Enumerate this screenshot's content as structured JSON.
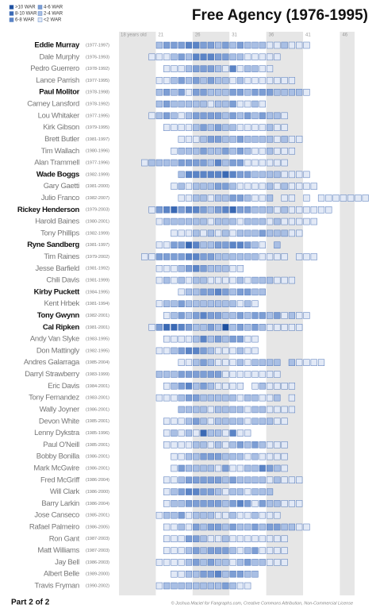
{
  "chart_data": {
    "type": "career-grid",
    "title": "Free Agency (1976-1995)",
    "footer_left": "Part 2 of 2",
    "credit": "© Joshua Maciel for Fangraphs.com, Creative Commons Attribution, Non-Commercial License",
    "legend": [
      {
        "label": ">10 WAR",
        "color": "#1d4f9e",
        "min": 10
      },
      {
        "label": "8-10 WAR",
        "color": "#3a69b4",
        "min": 8
      },
      {
        "label": "6-8 WAR",
        "color": "#5b84c6",
        "min": 6
      },
      {
        "label": "4-6 WAR",
        "color": "#7d9ed4",
        "min": 4
      },
      {
        "label": "2-4 WAR",
        "color": "#a9bfe4",
        "min": 2
      },
      {
        "label": "<2 WAR",
        "color": "#e2e9f6"
      }
    ],
    "xlim": [
      16,
      48
    ],
    "xticks": [
      {
        "value": 18,
        "label": "18 years old"
      },
      21,
      26,
      31,
      36,
      41,
      46
    ],
    "rows": [
      {
        "name": "Eddie Murray",
        "years": "(1977-1997)",
        "bold": true,
        "start_age": 21,
        "war": [
          3,
          5,
          5,
          5,
          7,
          7,
          5,
          5,
          3,
          5,
          3,
          5,
          3,
          3,
          3,
          1,
          1,
          3,
          1,
          1,
          1
        ]
      },
      {
        "name": "Dale Murphy",
        "years": "(1976-1993)",
        "bold": false,
        "start_age": 20,
        "war": [
          1,
          1,
          1,
          3,
          5,
          3,
          7,
          7,
          7,
          5,
          5,
          3,
          3,
          1,
          1,
          1,
          1,
          1
        ]
      },
      {
        "name": "Pedro Guerrero",
        "years": "(1978-1992)",
        "bold": false,
        "start_age": 22,
        "war": [
          1,
          1,
          1,
          3,
          5,
          5,
          5,
          3,
          1,
          7,
          1,
          3,
          3,
          1,
          1
        ]
      },
      {
        "name": "Lance Parrish",
        "years": "(1977-1995)",
        "bold": false,
        "start_age": 21,
        "war": [
          1,
          1,
          3,
          5,
          3,
          5,
          3,
          5,
          3,
          3,
          1,
          3,
          1,
          1,
          1,
          1,
          1,
          1,
          1
        ]
      },
      {
        "name": "Paul Molitor",
        "years": "(1978-1998)",
        "bold": true,
        "start_age": 21,
        "war": [
          3,
          5,
          3,
          5,
          1,
          5,
          5,
          3,
          3,
          3,
          5,
          5,
          3,
          5,
          5,
          5,
          3,
          3,
          3,
          3,
          1
        ]
      },
      {
        "name": "Carney Lansford",
        "years": "(1978-1992)",
        "bold": false,
        "start_age": 21,
        "war": [
          3,
          5,
          3,
          3,
          3,
          3,
          3,
          1,
          3,
          3,
          5,
          1,
          1,
          3,
          1
        ]
      },
      {
        "name": "Lou Whitaker",
        "years": "(1977-1995)",
        "bold": false,
        "start_age": 20,
        "war": [
          1,
          3,
          5,
          3,
          1,
          3,
          5,
          5,
          5,
          5,
          3,
          5,
          3,
          5,
          3,
          5,
          3,
          3,
          1
        ]
      },
      {
        "name": "Kirk Gibson",
        "years": "(1979-1995)",
        "bold": false,
        "start_age": 22,
        "war": [
          1,
          1,
          1,
          1,
          3,
          5,
          3,
          5,
          3,
          3,
          1,
          1,
          1,
          1,
          3,
          1,
          1
        ]
      },
      {
        "name": "Brett Butler",
        "years": "(1981-1997)",
        "bold": false,
        "start_age": 24,
        "war": [
          1,
          1,
          1,
          3,
          5,
          5,
          3,
          3,
          5,
          3,
          3,
          3,
          3,
          1,
          3,
          1,
          1
        ]
      },
      {
        "name": "Tim Wallach",
        "years": "(1980-1996)",
        "bold": false,
        "start_age": 23,
        "war": [
          1,
          3,
          3,
          3,
          5,
          3,
          3,
          5,
          3,
          5,
          3,
          1,
          1,
          3,
          1,
          1,
          1
        ]
      },
      {
        "name": "Alan Trammell",
        "years": "(1977-1996)",
        "bold": false,
        "start_age": 19,
        "war": [
          1,
          3,
          3,
          3,
          3,
          5,
          5,
          5,
          5,
          3,
          7,
          3,
          5,
          5,
          1,
          1,
          1,
          1,
          1,
          1
        ]
      },
      {
        "name": "Wade Boggs",
        "years": "(1982-1999)",
        "bold": true,
        "start_age": 24,
        "war": [
          3,
          7,
          7,
          7,
          7,
          7,
          9,
          7,
          5,
          5,
          3,
          3,
          3,
          3,
          1,
          1,
          1,
          1
        ]
      },
      {
        "name": "Gary Gaetti",
        "years": "(1981-2000)",
        "bold": false,
        "start_age": 23,
        "war": [
          1,
          3,
          1,
          3,
          3,
          3,
          5,
          5,
          3,
          1,
          1,
          1,
          1,
          3,
          1,
          3,
          1,
          1,
          1,
          1
        ]
      },
      {
        "name": "Julio Franco",
        "years": "(1982-2007)",
        "bold": false,
        "start_age": 24,
        "war": [
          1,
          1,
          3,
          3,
          1,
          3,
          3,
          5,
          5,
          3,
          1,
          1,
          3,
          null,
          1,
          1,
          null,
          1,
          null,
          1,
          1,
          1,
          1,
          1,
          1,
          1
        ]
      },
      {
        "name": "Rickey Henderson",
        "years": "(1979-2003)",
        "bold": true,
        "start_age": 20,
        "war": [
          1,
          5,
          7,
          9,
          5,
          7,
          7,
          5,
          3,
          5,
          7,
          9,
          5,
          5,
          3,
          3,
          3,
          1,
          3,
          1,
          1,
          1,
          1,
          1,
          1
        ]
      },
      {
        "name": "Harold Baines",
        "years": "(1980-2001)",
        "bold": false,
        "start_age": 21,
        "war": [
          1,
          3,
          3,
          3,
          3,
          3,
          3,
          1,
          3,
          3,
          3,
          1,
          3,
          3,
          3,
          1,
          3,
          1,
          1,
          1,
          1,
          1
        ]
      },
      {
        "name": "Tony Phillips",
        "years": "(1982-1999)",
        "bold": false,
        "start_age": 23,
        "war": [
          1,
          1,
          1,
          3,
          1,
          3,
          1,
          3,
          1,
          3,
          3,
          3,
          5,
          3,
          3,
          3,
          1,
          1
        ]
      },
      {
        "name": "Ryne Sandberg",
        "years": "(1981-1997)",
        "bold": true,
        "start_age": 21,
        "war": [
          1,
          1,
          5,
          5,
          9,
          7,
          3,
          3,
          5,
          5,
          7,
          7,
          5,
          3,
          1,
          null,
          3
        ]
      },
      {
        "name": "Tim Raines",
        "years": "(1979-2002)",
        "bold": false,
        "start_age": 19,
        "war": [
          1,
          1,
          5,
          5,
          5,
          5,
          7,
          7,
          5,
          5,
          3,
          3,
          3,
          3,
          3,
          3,
          1,
          1,
          1,
          1,
          null,
          1,
          1,
          1
        ]
      },
      {
        "name": "Jesse Barfield",
        "years": "(1981-1992)",
        "bold": false,
        "start_age": 21,
        "war": [
          1,
          1,
          1,
          3,
          5,
          7,
          5,
          3,
          3,
          3,
          1,
          1
        ]
      },
      {
        "name": "Chili Davis",
        "years": "(1981-1999)",
        "bold": false,
        "start_age": 21,
        "war": [
          1,
          3,
          1,
          3,
          1,
          3,
          3,
          1,
          1,
          1,
          1,
          3,
          1,
          3,
          3,
          3,
          1,
          1,
          1
        ]
      },
      {
        "name": "Kirby Puckett",
        "years": "(1984-1995)",
        "bold": true,
        "start_age": 24,
        "war": [
          1,
          3,
          3,
          5,
          5,
          7,
          5,
          3,
          5,
          5,
          3,
          3
        ]
      },
      {
        "name": "Kent Hrbek",
        "years": "(1981-1994)",
        "bold": false,
        "start_age": 21,
        "war": [
          1,
          3,
          3,
          5,
          3,
          3,
          3,
          3,
          3,
          3,
          3,
          1,
          3,
          1
        ]
      },
      {
        "name": "Tony Gwynn",
        "years": "(1982-2001)",
        "bold": true,
        "start_age": 22,
        "war": [
          1,
          3,
          5,
          3,
          5,
          7,
          5,
          5,
          3,
          3,
          5,
          3,
          5,
          5,
          3,
          5,
          1,
          3,
          1,
          1
        ]
      },
      {
        "name": "Cal Ripken",
        "years": "(1981-2001)",
        "bold": true,
        "start_age": 20,
        "war": [
          1,
          5,
          9,
          9,
          7,
          5,
          3,
          3,
          5,
          3,
          11,
          3,
          5,
          3,
          5,
          3,
          1,
          1,
          1,
          1,
          1
        ]
      },
      {
        "name": "Andy Van Slyke",
        "years": "(1983-1995)",
        "bold": false,
        "start_age": 22,
        "war": [
          1,
          1,
          1,
          1,
          3,
          7,
          3,
          5,
          3,
          5,
          5,
          1,
          1
        ]
      },
      {
        "name": "Don Mattingly",
        "years": "(1982-1995)",
        "bold": false,
        "start_age": 21,
        "war": [
          1,
          1,
          3,
          5,
          7,
          7,
          5,
          3,
          1,
          1,
          1,
          3,
          1,
          1
        ]
      },
      {
        "name": "Andres Galarraga",
        "years": "(1985-2004)",
        "bold": false,
        "start_age": 24,
        "war": [
          1,
          1,
          3,
          5,
          3,
          1,
          1,
          1,
          3,
          1,
          3,
          3,
          3,
          3,
          null,
          3,
          1,
          1,
          1,
          1
        ]
      },
      {
        "name": "Darryl Strawberry",
        "years": "(1983-1999)",
        "bold": false,
        "start_age": 21,
        "war": [
          3,
          3,
          3,
          5,
          5,
          5,
          5,
          5,
          5,
          1,
          1,
          1,
          1,
          1,
          1,
          1,
          1
        ]
      },
      {
        "name": "Eric Davis",
        "years": "(1984-2001)",
        "bold": false,
        "start_age": 22,
        "war": [
          1,
          3,
          5,
          7,
          3,
          5,
          3,
          1,
          1,
          1,
          1,
          null,
          1,
          3,
          1,
          1,
          1,
          1
        ]
      },
      {
        "name": "Tony Fernandez",
        "years": "(1983-2001)",
        "bold": false,
        "start_age": 21,
        "war": [
          1,
          1,
          1,
          3,
          5,
          5,
          3,
          3,
          3,
          3,
          3,
          1,
          3,
          3,
          1,
          1,
          3,
          null,
          1
        ]
      },
      {
        "name": "Wally Joyner",
        "years": "(1986-2001)",
        "bold": false,
        "start_age": 24,
        "war": [
          3,
          3,
          3,
          3,
          1,
          3,
          3,
          3,
          3,
          1,
          3,
          3,
          1,
          1,
          1,
          1
        ]
      },
      {
        "name": "Devon White",
        "years": "(1985-2001)",
        "bold": false,
        "start_age": 22,
        "war": [
          1,
          1,
          1,
          3,
          5,
          3,
          1,
          3,
          3,
          3,
          3,
          1,
          3,
          3,
          3,
          1,
          1
        ]
      },
      {
        "name": "Lenny Dykstra",
        "years": "(1985-1996)",
        "bold": false,
        "start_age": 22,
        "war": [
          1,
          3,
          1,
          3,
          1,
          9,
          3,
          3,
          1,
          7,
          1,
          1
        ]
      },
      {
        "name": "Paul O'Neill",
        "years": "(1985-2001)",
        "bold": false,
        "start_age": 22,
        "war": [
          1,
          1,
          1,
          1,
          3,
          3,
          1,
          3,
          1,
          3,
          5,
          3,
          5,
          3,
          1,
          1,
          1
        ]
      },
      {
        "name": "Bobby Bonilla",
        "years": "(1986-2001)",
        "bold": false,
        "start_age": 23,
        "war": [
          1,
          1,
          3,
          3,
          5,
          5,
          5,
          3,
          3,
          3,
          1,
          3,
          1,
          1,
          1,
          1
        ]
      },
      {
        "name": "Mark McGwire",
        "years": "(1986-2001)",
        "bold": false,
        "start_age": 23,
        "war": [
          1,
          5,
          3,
          3,
          3,
          3,
          1,
          5,
          1,
          1,
          3,
          3,
          7,
          5,
          3,
          1
        ]
      },
      {
        "name": "Fred McGriff",
        "years": "(1986-2004)",
        "bold": false,
        "start_age": 22,
        "war": [
          1,
          1,
          3,
          5,
          5,
          5,
          5,
          5,
          3,
          5,
          3,
          3,
          3,
          3,
          1,
          3,
          1,
          1,
          1
        ]
      },
      {
        "name": "Will Clark",
        "years": "(1986-2000)",
        "bold": false,
        "start_age": 22,
        "war": [
          1,
          3,
          5,
          7,
          7,
          5,
          5,
          3,
          1,
          3,
          3,
          1,
          3,
          3,
          3
        ]
      },
      {
        "name": "Barry Larkin",
        "years": "(1986-2004)",
        "bold": false,
        "start_age": 22,
        "war": [
          1,
          3,
          3,
          5,
          5,
          5,
          5,
          5,
          3,
          5,
          7,
          5,
          1,
          5,
          3,
          3,
          1,
          1,
          1
        ]
      },
      {
        "name": "Jose Canseco",
        "years": "(1985-2001)",
        "bold": false,
        "start_age": 21,
        "war": [
          1,
          3,
          3,
          5,
          1,
          3,
          3,
          3,
          1,
          1,
          3,
          1,
          1,
          3,
          1,
          1,
          1
        ]
      },
      {
        "name": "Rafael Palmeiro",
        "years": "(1986-2005)",
        "bold": false,
        "start_age": 22,
        "war": [
          1,
          1,
          3,
          1,
          5,
          3,
          5,
          5,
          3,
          5,
          3,
          3,
          5,
          3,
          5,
          5,
          3,
          3,
          1,
          1
        ]
      },
      {
        "name": "Ron Gant",
        "years": "(1987-2003)",
        "bold": false,
        "start_age": 22,
        "war": [
          1,
          1,
          1,
          5,
          5,
          3,
          1,
          1,
          3,
          1,
          1,
          1,
          1,
          1,
          1,
          1,
          1
        ]
      },
      {
        "name": "Matt Williams",
        "years": "(1987-2003)",
        "bold": false,
        "start_age": 22,
        "war": [
          1,
          1,
          1,
          3,
          5,
          3,
          5,
          5,
          5,
          3,
          1,
          3,
          5,
          1,
          1,
          1,
          1
        ]
      },
      {
        "name": "Jay Bell",
        "years": "(1986-2003)",
        "bold": false,
        "start_age": 21,
        "war": [
          1,
          1,
          1,
          1,
          3,
          5,
          3,
          5,
          3,
          3,
          1,
          3,
          5,
          3,
          3,
          1,
          1,
          1
        ]
      },
      {
        "name": "Albert Belle",
        "years": "(1989-2000)",
        "bold": false,
        "start_age": 23,
        "war": [
          1,
          1,
          3,
          3,
          5,
          5,
          7,
          3,
          5,
          5,
          3,
          3
        ]
      },
      {
        "name": "Travis Fryman",
        "years": "(1990-2002)",
        "bold": false,
        "start_age": 21,
        "war": [
          1,
          3,
          3,
          3,
          3,
          3,
          3,
          3,
          3,
          5,
          3,
          1,
          1
        ]
      }
    ]
  }
}
